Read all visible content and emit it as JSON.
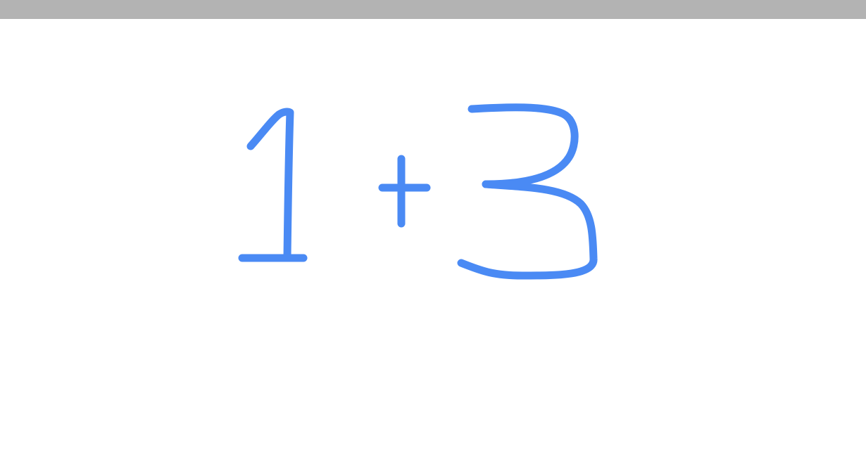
{
  "top_bar": {
    "color": "#b3b3b3"
  },
  "canvas": {
    "background": "#ffffff",
    "ink_color": "#4a8af4",
    "handwritten_expression": {
      "strokes": [
        {
          "name": "digit-one",
          "glyph": "1"
        },
        {
          "name": "plus-sign",
          "glyph": "+"
        },
        {
          "name": "digit-three",
          "glyph": "3"
        }
      ]
    }
  }
}
